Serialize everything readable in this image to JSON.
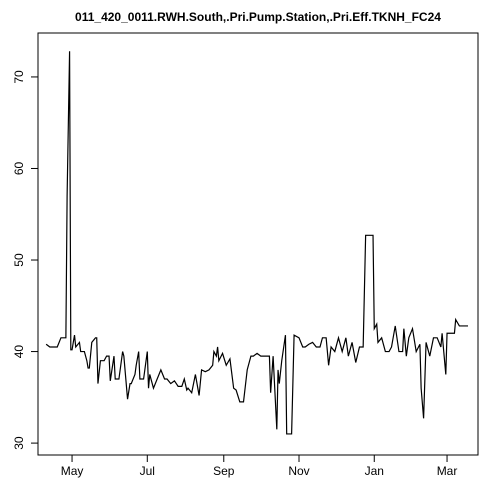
{
  "chart_data": {
    "type": "line",
    "title": "011_420_0011.RWH.South,.Pri.Pump.Station,.Pri.Eff.TKNH_FC24",
    "x": [
      9,
      12,
      18,
      21,
      25,
      26,
      28,
      29,
      30,
      32,
      33,
      36,
      37,
      40,
      42,
      43,
      44,
      46,
      49,
      50,
      51,
      53,
      56,
      58,
      60,
      61,
      64,
      65,
      68,
      71,
      72,
      75,
      77,
      78,
      81,
      82,
      84,
      85,
      88,
      91,
      92,
      93,
      96,
      99,
      102,
      105,
      107,
      110,
      113,
      116,
      119,
      121,
      123,
      124,
      127,
      130,
      133,
      135,
      138,
      141,
      144,
      145,
      147,
      148,
      149,
      152,
      155,
      158,
      161,
      163,
      166,
      169,
      172,
      175,
      177,
      180,
      183,
      186,
      190,
      191,
      193,
      196,
      197,
      198,
      200,
      203,
      204,
      208,
      210,
      214,
      217,
      219,
      222,
      225,
      228,
      231,
      233,
      236,
      238,
      240,
      243,
      246,
      249,
      252,
      254,
      257,
      260,
      263,
      266,
      268,
      274,
      275,
      277,
      278,
      281,
      284,
      287,
      289,
      292,
      295,
      298,
      299,
      301,
      303,
      306,
      309,
      312,
      313,
      315,
      317,
      320,
      323,
      326,
      329,
      330,
      333,
      334,
      337,
      340,
      341,
      344,
      351
    ],
    "series": [
      {
        "color": "#000000",
        "values": [
          40.8,
          40.5,
          40.5,
          41.5,
          41.5,
          57,
          72.8,
          40.2,
          40.2,
          41.8,
          40.5,
          41,
          40,
          40,
          39,
          38.2,
          38.2,
          41,
          41.5,
          41.5,
          36.5,
          39,
          39,
          39.5,
          39.5,
          36.8,
          39.5,
          37,
          37,
          40,
          39.5,
          34.8,
          36.5,
          36.5,
          37.5,
          38.5,
          40,
          37,
          37,
          40,
          36,
          37.5,
          36,
          37,
          38,
          37,
          37,
          36.5,
          36.8,
          36.2,
          36.2,
          37,
          35.8,
          36,
          35.5,
          37.5,
          35.2,
          38,
          37.8,
          38,
          38.5,
          40,
          39.5,
          40.5,
          39,
          39.8,
          38.5,
          39.2,
          36,
          35.8,
          34.5,
          34.5,
          38,
          39.5,
          39.5,
          39.8,
          39.5,
          39.5,
          39.5,
          35.5,
          39.5,
          31.5,
          38,
          36.5,
          39,
          41.8,
          31,
          31,
          41.8,
          41.5,
          40.5,
          40.5,
          40.8,
          41,
          40.5,
          40.5,
          41.5,
          41.5,
          38.5,
          40.5,
          40,
          41.5,
          40,
          41.5,
          39.5,
          41,
          38.8,
          40.5,
          40.5,
          52.7,
          52.7,
          42.5,
          43,
          41,
          41.5,
          40,
          40,
          40.5,
          42.8,
          40,
          40,
          42.5,
          39.5,
          41.5,
          42.5,
          40,
          40.8,
          36,
          32.7,
          41,
          39.5,
          41.5,
          41.5,
          40.5,
          42,
          37.5,
          42,
          42,
          42,
          43.5,
          42.8,
          42.8
        ]
      }
    ],
    "xlim": [
      2.4,
      359.1
    ],
    "xticks": [
      {
        "value": 30,
        "label": "May"
      },
      {
        "value": 91,
        "label": "Jul"
      },
      {
        "value": 153,
        "label": "Sep"
      },
      {
        "value": 214,
        "label": "Nov"
      },
      {
        "value": 275,
        "label": "Jan"
      },
      {
        "value": 334,
        "label": "Mar"
      }
    ],
    "ylim": [
      28.7,
      74.8
    ],
    "yticks": [
      30,
      40,
      50,
      60,
      70
    ]
  }
}
